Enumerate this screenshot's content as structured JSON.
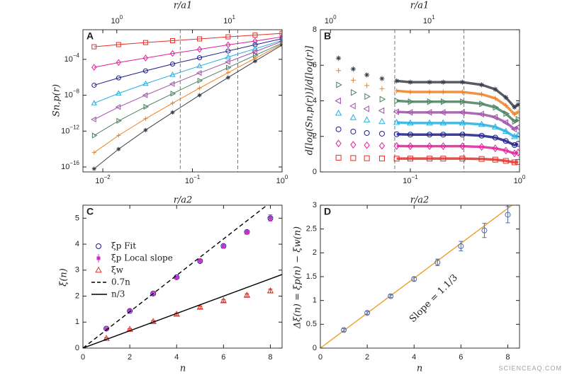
{
  "chart_data": [
    {
      "type": "line",
      "label": "A",
      "xlabel": "r/a2",
      "x2label": "r/a1",
      "ylabel": "Sn,p(r)",
      "xscale": "log",
      "yscale": "log",
      "xlim": [
        0.006,
        1
      ],
      "ylim": [
        2.8e-17,
        0.2
      ],
      "x2lim": [
        0.5,
        29.4
      ],
      "xticks": [
        {
          "value": 0.01,
          "label": "10",
          "exp": "−2"
        },
        {
          "value": 0.1,
          "label": "10",
          "exp": "−1"
        },
        {
          "value": 1,
          "label": "10",
          "exp": "0"
        }
      ],
      "x2ticks": [
        {
          "value": 1,
          "label": "10",
          "exp": "0"
        },
        {
          "value": 10,
          "label": "10",
          "exp": "1"
        }
      ],
      "yticks": [
        {
          "value": 1e-16,
          "label": "10",
          "exp": "−16"
        },
        {
          "value": 1e-12,
          "label": "10",
          "exp": "−12"
        },
        {
          "value": 1e-08,
          "label": "10",
          "exp": "−8"
        },
        {
          "value": 0.0001,
          "label": "10",
          "exp": "−4"
        }
      ],
      "vlines": [
        0.073,
        0.32
      ],
      "x": [
        0.008,
        0.015,
        0.03,
        0.06,
        0.12,
        0.25,
        0.5,
        1
      ],
      "series": [
        {
          "color": "#e0302a",
          "marker": "square",
          "values": [
            0.0025,
            0.0044,
            0.0074,
            0.012,
            0.019,
            0.032,
            0.05,
            0.079
          ]
        },
        {
          "color": "#e0209a",
          "marker": "diamond",
          "values": [
            1.3e-05,
            4.4e-05,
            0.00014,
            0.00045,
            0.0013,
            0.0041,
            0.011,
            0.032
          ]
        },
        {
          "color": "#1c1c8c",
          "marker": "circle",
          "values": [
            1.3e-07,
            8.5e-07,
            5.2e-06,
            3e-05,
            0.00015,
            0.00085,
            0.0042,
            0.02
          ]
        },
        {
          "color": "#25aee0",
          "marker": "triangle-up",
          "values": [
            1.3e-09,
            1.6e-08,
            1.9e-07,
            1.9e-06,
            1.8e-05,
            0.00018,
            0.0015,
            0.013
          ]
        },
        {
          "color": "#a050a8",
          "marker": "triangle-left",
          "values": [
            2e-11,
            4.8e-10,
            1e-08,
            1.8e-07,
            3e-06,
            5.1e-05,
            0.00072,
            0.01
          ]
        },
        {
          "color": "#4a8060",
          "marker": "triangle-right",
          "values": [
            3.2e-13,
            1.4e-11,
            5.1e-10,
            1.5e-08,
            4.2e-07,
            1.2e-05,
            0.00028,
            0.0063
          ]
        },
        {
          "color": "#f08020",
          "marker": "plus",
          "values": [
            4e-15,
            3.3e-13,
            2.4e-11,
            1.3e-09,
            6.2e-08,
            3.3e-06,
            0.00013,
            0.005
          ]
        },
        {
          "color": "#3a3f4a",
          "marker": "star",
          "values": [
            6.3e-17,
            9.8e-15,
            1.3e-12,
            1.2e-10,
            1e-08,
            9.3e-07,
            6.2e-05,
            0.004
          ]
        }
      ]
    },
    {
      "type": "scatter",
      "label": "B",
      "xlabel": "r/a2",
      "x2label": "r/a1",
      "ylabel": "d[log(Sn,p(r))]/d[log(r)]",
      "xscale": "log",
      "xlim": [
        0.015,
        1
      ],
      "ylim": [
        0,
        8
      ],
      "x2lim": [
        0.79,
        83
      ],
      "xticks": [
        {
          "value": 0.1,
          "label": "10",
          "exp": "−1"
        },
        {
          "value": 1,
          "label": "10",
          "exp": "0"
        }
      ],
      "x2ticks": [
        {
          "value": 1,
          "label": "10",
          "exp": "0"
        },
        {
          "value": 10,
          "label": "10",
          "exp": "1"
        }
      ],
      "yticks": [
        0,
        2,
        4,
        6,
        8
      ],
      "vlines": [
        0.072,
        0.31
      ],
      "x": [
        0.022,
        0.03,
        0.04,
        0.055,
        0.075,
        0.1,
        0.15,
        0.2,
        0.3,
        0.45,
        0.6,
        0.75,
        0.9,
        0.97
      ],
      "series": [
        {
          "color": "#e0302a",
          "marker": "square",
          "values": [
            0.8,
            0.78,
            0.77,
            0.76,
            0.75,
            0.75,
            0.75,
            0.75,
            0.75,
            0.73,
            0.69,
            0.62,
            0.54,
            0.56
          ]
        },
        {
          "color": "#e0209a",
          "marker": "diamond",
          "values": [
            1.6,
            1.53,
            1.5,
            1.47,
            1.46,
            1.45,
            1.45,
            1.45,
            1.45,
            1.41,
            1.33,
            1.2,
            1.04,
            1.09
          ]
        },
        {
          "color": "#1c1c8c",
          "marker": "circle",
          "values": [
            2.4,
            2.27,
            2.19,
            2.15,
            2.12,
            2.1,
            2.1,
            2.1,
            2.1,
            2.04,
            1.93,
            1.74,
            1.51,
            1.58
          ]
        },
        {
          "color": "#25aee0",
          "marker": "triangle-up",
          "values": [
            3.3,
            3.05,
            2.92,
            2.83,
            2.78,
            2.75,
            2.75,
            2.75,
            2.75,
            2.67,
            2.53,
            2.28,
            1.98,
            2.06
          ]
        },
        {
          "color": "#a050a8",
          "marker": "triangle-left",
          "values": [
            4.0,
            3.71,
            3.55,
            3.45,
            3.38,
            3.35,
            3.35,
            3.35,
            3.35,
            3.25,
            3.08,
            2.78,
            2.41,
            2.51
          ]
        },
        {
          "color": "#4a8060",
          "marker": "triangle-right",
          "values": [
            4.9,
            4.47,
            4.24,
            4.09,
            4.0,
            3.95,
            3.95,
            3.95,
            3.95,
            3.83,
            3.63,
            3.28,
            2.84,
            2.96
          ]
        },
        {
          "color": "#f08020",
          "marker": "plus",
          "values": [
            5.7,
            5.16,
            4.86,
            4.68,
            4.56,
            4.5,
            4.5,
            4.5,
            4.5,
            4.37,
            4.14,
            3.74,
            3.24,
            3.38
          ]
        },
        {
          "color": "#3a3f4a",
          "marker": "star",
          "values": [
            6.4,
            5.79,
            5.46,
            5.25,
            5.12,
            5.05,
            5.05,
            5.05,
            5.05,
            4.9,
            4.65,
            4.19,
            3.64,
            3.79
          ]
        }
      ]
    },
    {
      "type": "scatter",
      "label": "C",
      "xlabel": "n",
      "ylabel": "ξ(n)",
      "legend": "upper left",
      "xlim": [
        0,
        8.5
      ],
      "ylim": [
        0,
        5.5
      ],
      "xticks": [
        0,
        2,
        4,
        6,
        8
      ],
      "yticks": [
        0,
        1,
        2,
        3,
        4,
        5
      ],
      "x": [
        1,
        2,
        3,
        4,
        5,
        6,
        7,
        8
      ],
      "series": [
        {
          "name": "ξp Fit",
          "color": "#1c1c8c",
          "marker": "circle",
          "values": [
            0.75,
            1.43,
            2.1,
            2.73,
            3.35,
            3.93,
            4.47,
            5.0
          ]
        },
        {
          "name": "ξp Local slope",
          "color": "#cc2fc8",
          "marker": "square",
          "values": [
            0.74,
            1.44,
            2.09,
            2.72,
            3.36,
            3.92,
            4.46,
            5.01
          ],
          "errors": [
            0.05,
            0.05,
            0.06,
            0.06,
            0.07,
            0.08,
            0.08,
            0.12
          ]
        },
        {
          "name": "ξw",
          "color": "#e0302a",
          "marker": "triangle-up",
          "values": [
            0.37,
            0.72,
            1.02,
            1.3,
            1.57,
            1.82,
            2.03,
            2.2
          ],
          "errors": [
            0.03,
            0.03,
            0.04,
            0.04,
            0.05,
            0.05,
            0.06,
            0.07
          ]
        },
        {
          "name": "0.7n",
          "color": "#000000",
          "line": "dashed",
          "x": [
            0,
            8.5
          ],
          "values": [
            0,
            5.95
          ]
        },
        {
          "name": "n/3",
          "color": "#000000",
          "line": "solid",
          "x": [
            0,
            8.5
          ],
          "values": [
            0,
            2.833
          ]
        }
      ]
    },
    {
      "type": "scatter",
      "label": "D",
      "xlabel": "n",
      "ylabel": "Δξ(n) = ξp(n) − ξw(n)",
      "annotation": "Slope = 1.1/3",
      "xlim": [
        0,
        8.5
      ],
      "ylim": [
        0,
        3
      ],
      "xticks": [
        0,
        2,
        4,
        6,
        8
      ],
      "yticks": [
        0,
        0.5,
        1,
        1.5,
        2,
        2.5,
        3
      ],
      "x": [
        1,
        2,
        3,
        4,
        5,
        6,
        7,
        8
      ],
      "series": [
        {
          "color": "#e8a030",
          "line": "solid",
          "x": [
            0,
            8.5
          ],
          "values": [
            0,
            3.117
          ]
        },
        {
          "color": "#4f6aa8",
          "marker": "circle",
          "values": [
            0.38,
            0.74,
            1.09,
            1.45,
            1.8,
            2.14,
            2.47,
            2.8
          ],
          "errors": [
            0.03,
            0.03,
            0.03,
            0.04,
            0.07,
            0.1,
            0.15,
            0.17
          ]
        }
      ]
    }
  ],
  "watermark": "SCIENCEAQ.COM"
}
